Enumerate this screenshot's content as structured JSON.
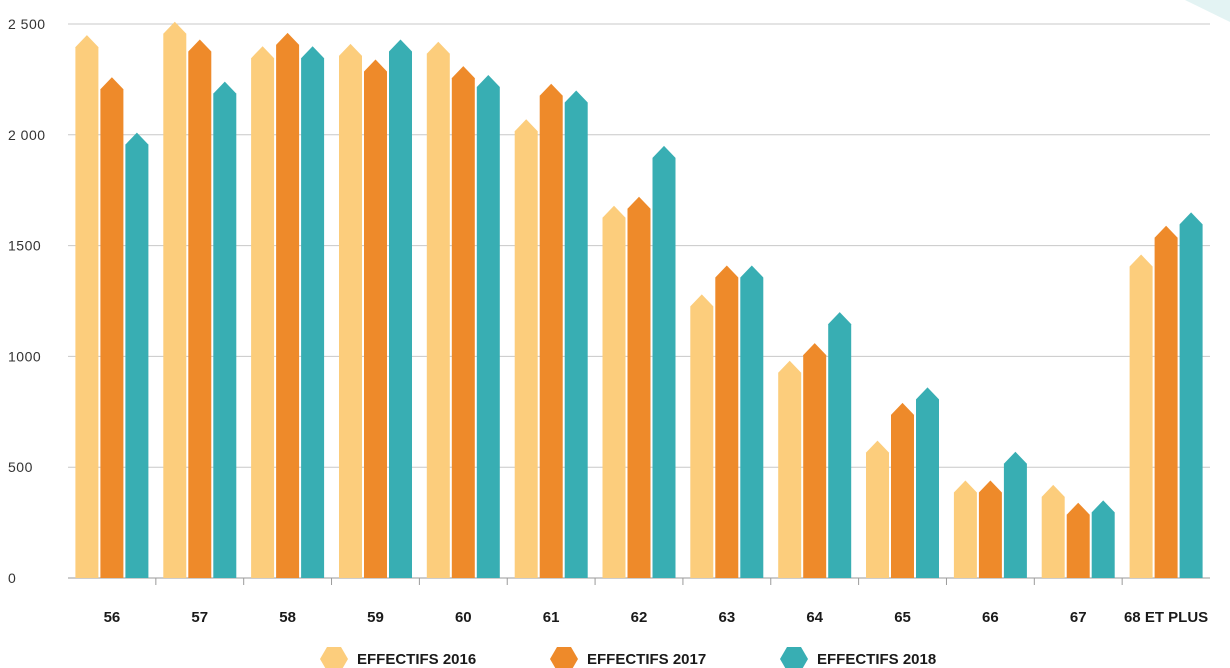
{
  "chart_data": {
    "type": "bar",
    "title": "",
    "xlabel": "",
    "ylabel": "",
    "ylim": [
      0,
      2500
    ],
    "yticks": [
      0,
      500,
      1000,
      1500,
      2000,
      2500
    ],
    "ytick_labels": [
      "0",
      "500",
      "1000",
      "1500",
      "2 000",
      "2 500"
    ],
    "grid": true,
    "legend_position": "bottom",
    "categories": [
      "56",
      "57",
      "58",
      "59",
      "60",
      "61",
      "62",
      "63",
      "64",
      "65",
      "66",
      "67",
      "68 ET PLUS"
    ],
    "series": [
      {
        "name": "EFFECTIFS 2016",
        "color": "#fccd7c",
        "values": [
          2450,
          2510,
          2400,
          2410,
          2420,
          2070,
          1680,
          1280,
          980,
          620,
          440,
          420,
          1460
        ]
      },
      {
        "name": "EFFECTIFS 2017",
        "color": "#ee8a2a",
        "values": [
          2260,
          2430,
          2460,
          2340,
          2310,
          2230,
          1720,
          1410,
          1060,
          790,
          440,
          340,
          1590
        ]
      },
      {
        "name": "EFFECTIFS 2018",
        "color": "#38aeb3",
        "values": [
          2010,
          2240,
          2400,
          2430,
          2270,
          2200,
          1950,
          1410,
          1200,
          860,
          570,
          350,
          1650
        ]
      }
    ]
  }
}
